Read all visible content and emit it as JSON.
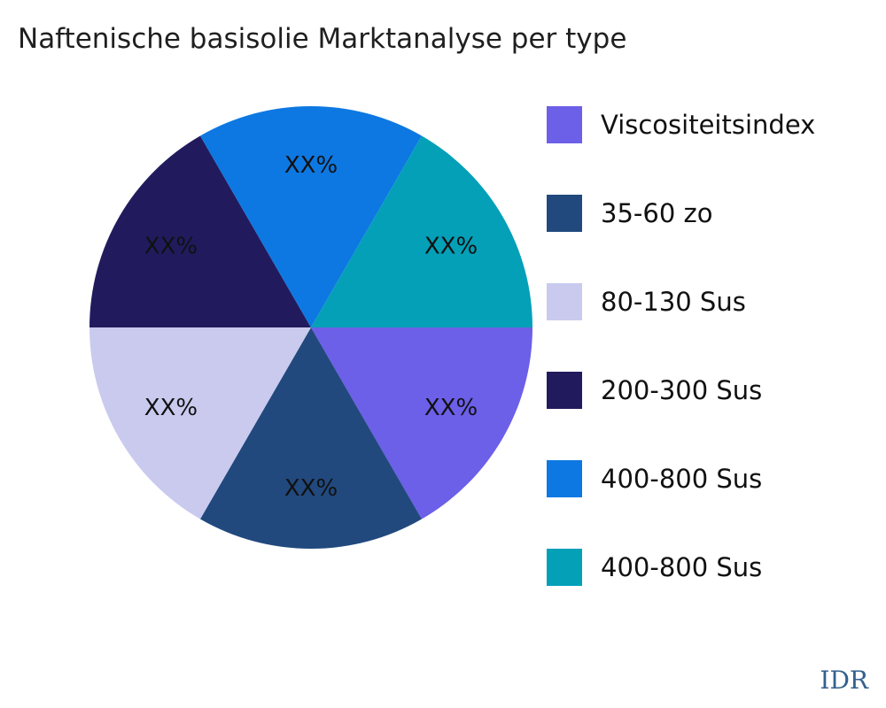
{
  "title": "Naftenische basisolie Marktanalyse per type",
  "watermark": "IDR",
  "chart_data": {
    "type": "pie",
    "title": "Naftenische basisolie Marktanalyse per type",
    "start_angle_deg": 0,
    "direction": "clockwise",
    "legend_position": "right",
    "slice_value_placeholder": "XX%",
    "slices": [
      {
        "label": "Viscositeitsindex",
        "value_label": "XX%",
        "angle_deg": 60,
        "color": "#6c5fe8"
      },
      {
        "label": "35-60 zo",
        "value_label": "XX%",
        "angle_deg": 60,
        "color": "#21497e"
      },
      {
        "label": "80-130 Sus",
        "value_label": "XX%",
        "angle_deg": 60,
        "color": "#c9caee"
      },
      {
        "label": "200-300 Sus",
        "value_label": "XX%",
        "angle_deg": 60,
        "color": "#211b5e"
      },
      {
        "label": "400-800 Sus",
        "value_label": "XX%",
        "angle_deg": 60,
        "color": "#0d78e2"
      },
      {
        "label": "400-800 Sus",
        "value_label": "XX%",
        "angle_deg": 60,
        "color": "#03a0b8"
      }
    ]
  },
  "colors": {
    "background": "#ffffff",
    "title_text": "#1f1f1f",
    "label_text": "#111111",
    "watermark_text": "#33618f"
  }
}
